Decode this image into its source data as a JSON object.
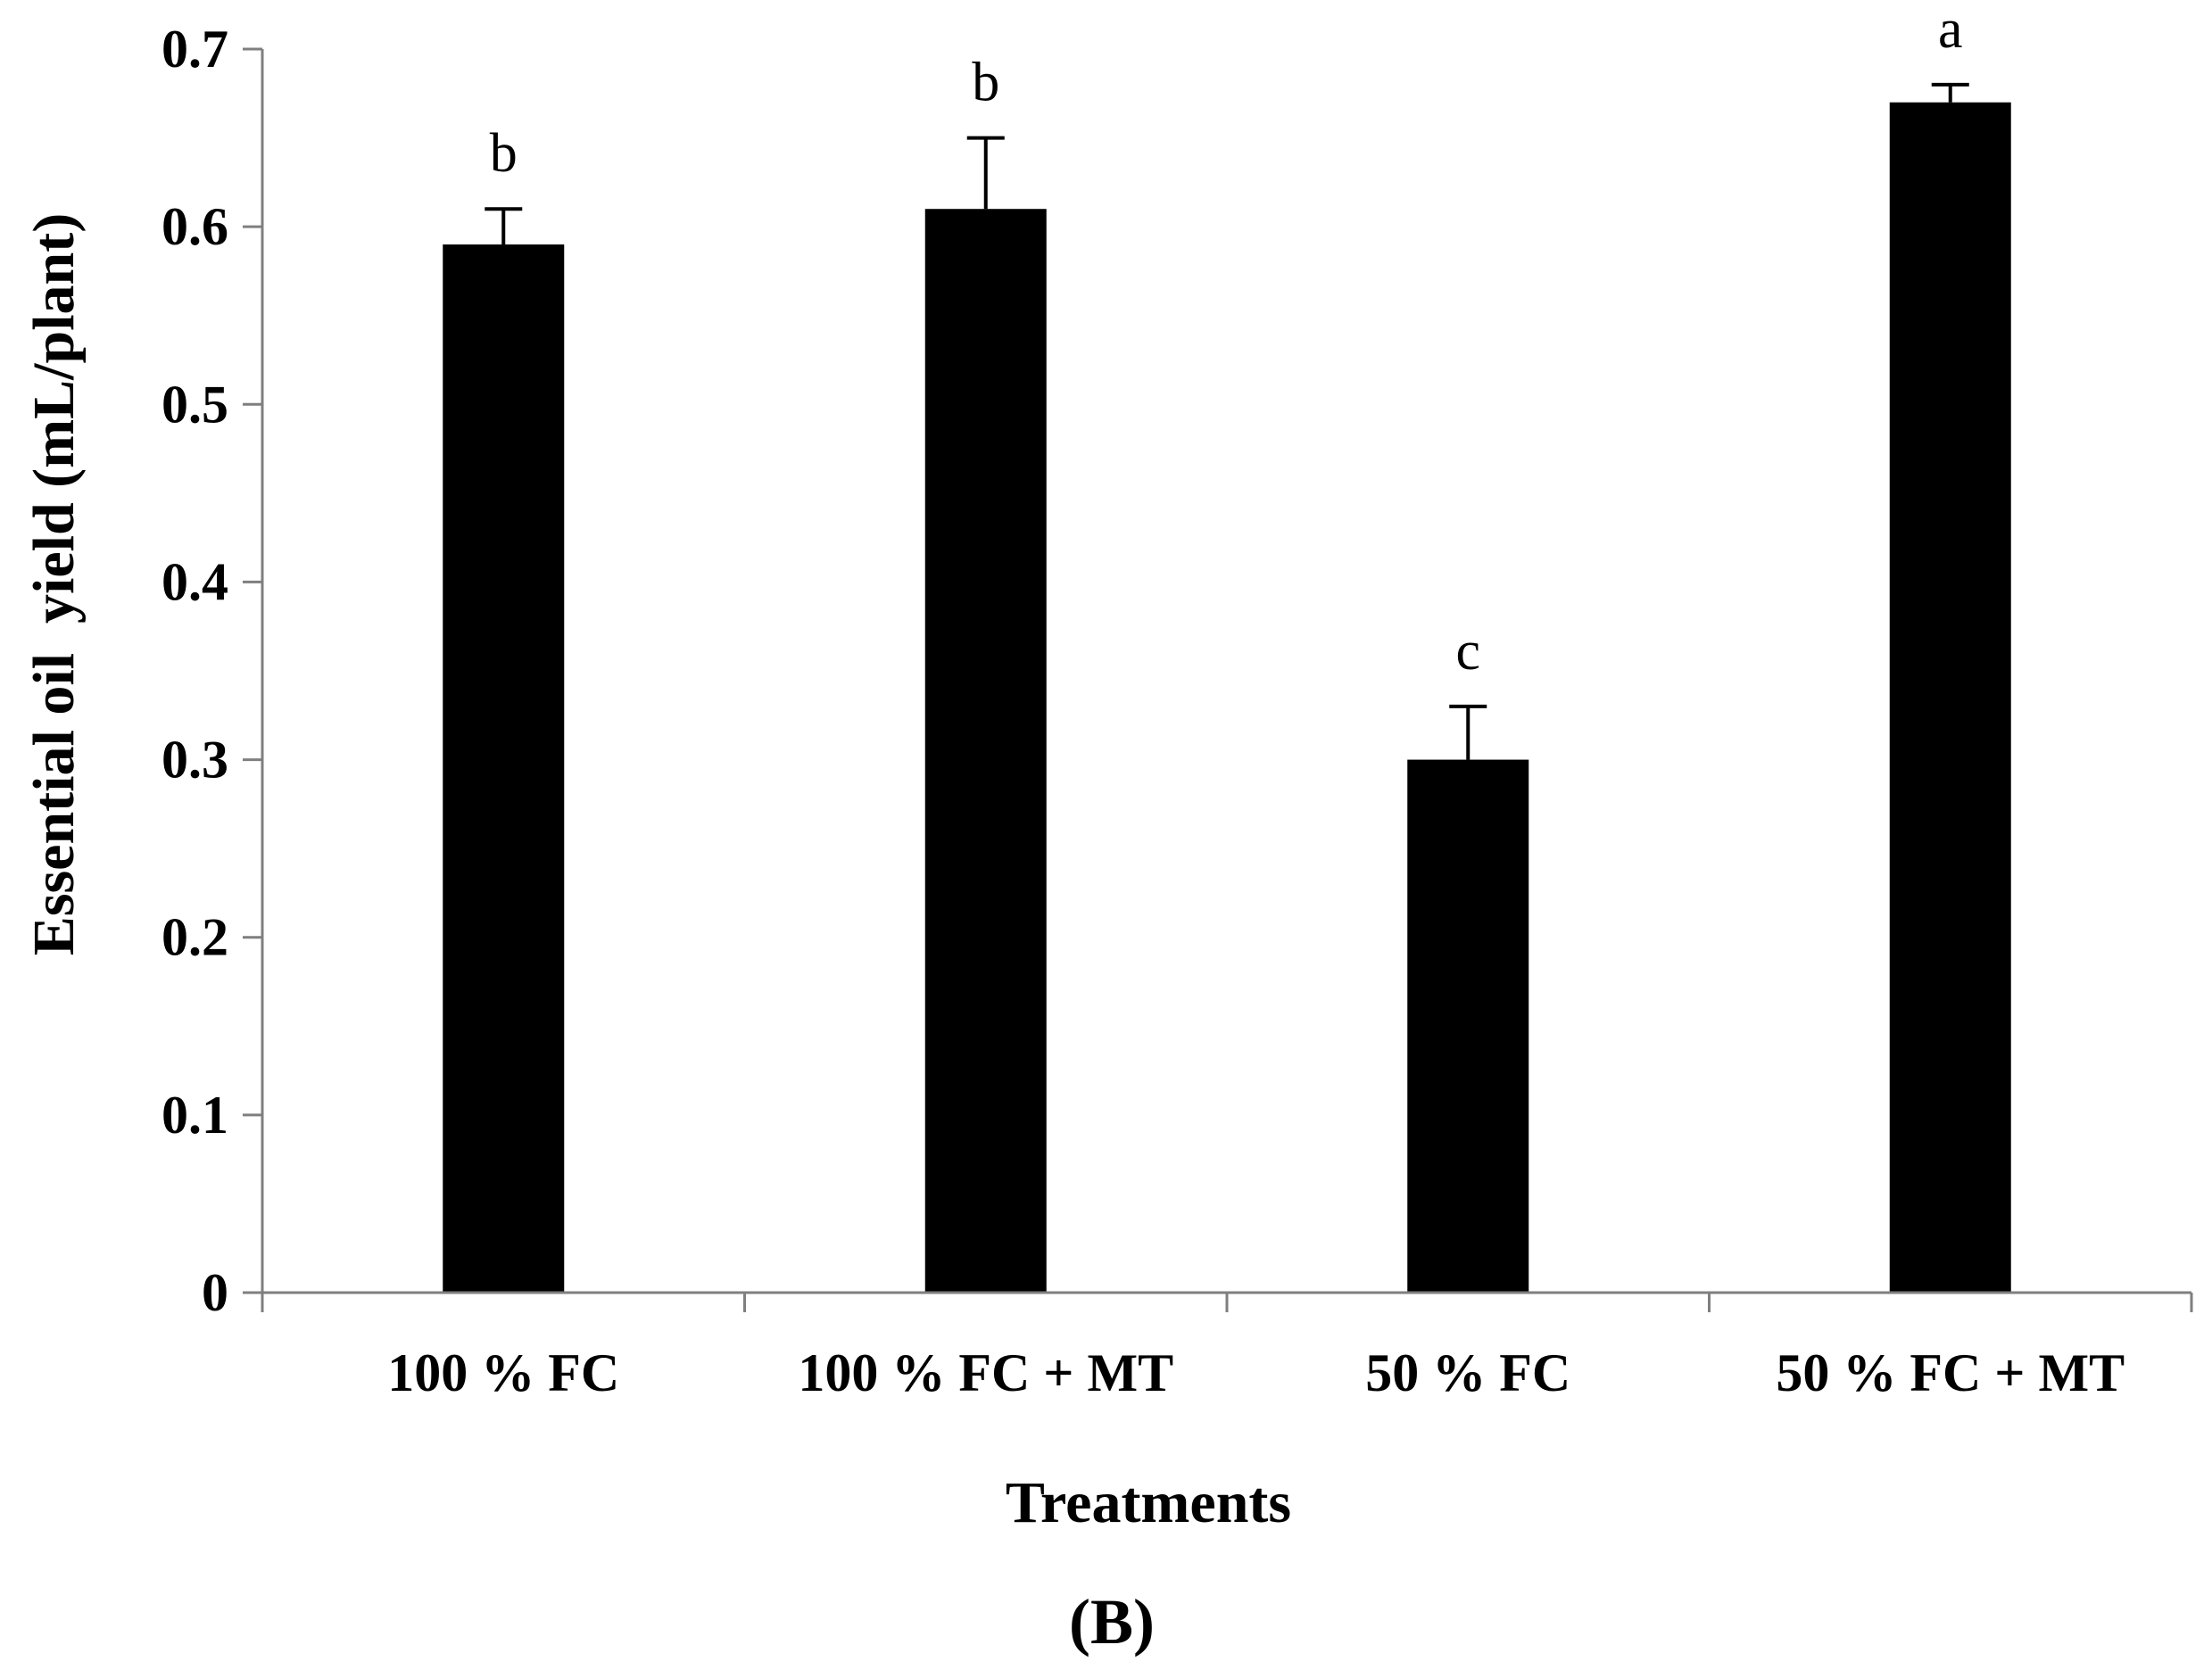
{
  "chart_data": {
    "type": "bar",
    "title": "",
    "xlabel": "Treatments",
    "ylabel": "Essential oil  yield (mL/plant)",
    "ylim": [
      0,
      0.7
    ],
    "yticks": [
      "0",
      "0.1",
      "0.2",
      "0.3",
      "0.4",
      "0.5",
      "0.6",
      "0.7"
    ],
    "categories": [
      "100 % FC",
      "100 % FC + MT",
      "50 % FC",
      "50 % FC + MT"
    ],
    "series": [
      {
        "name": "Essential oil yield",
        "values": [
          0.59,
          0.61,
          0.3,
          0.67
        ],
        "errors": [
          0.02,
          0.04,
          0.03,
          0.01
        ],
        "significance": [
          "b",
          "b",
          "c",
          "a"
        ]
      }
    ],
    "panel_label": "(B)",
    "colors": {
      "bar": "#000000",
      "axis": "#7f7f7f",
      "error": "#000000"
    }
  }
}
